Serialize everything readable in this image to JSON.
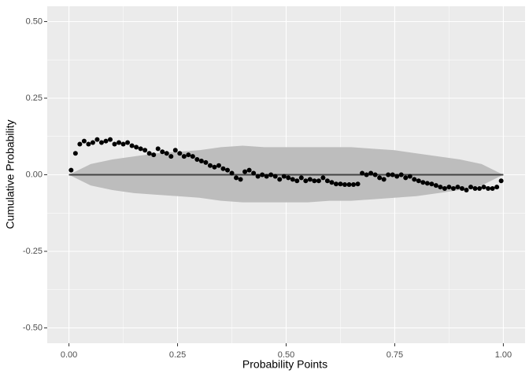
{
  "chart_data": {
    "type": "scatter",
    "xlabel": "Probability Points",
    "ylabel": "Cumulative Probability",
    "x": [
      0.005,
      0.015,
      0.025,
      0.035,
      0.045,
      0.055,
      0.065,
      0.075,
      0.085,
      0.095,
      0.105,
      0.115,
      0.125,
      0.135,
      0.145,
      0.155,
      0.165,
      0.175,
      0.185,
      0.195,
      0.205,
      0.215,
      0.225,
      0.235,
      0.245,
      0.255,
      0.265,
      0.275,
      0.285,
      0.295,
      0.305,
      0.315,
      0.325,
      0.335,
      0.345,
      0.355,
      0.365,
      0.375,
      0.385,
      0.395,
      0.405,
      0.415,
      0.425,
      0.435,
      0.445,
      0.455,
      0.465,
      0.475,
      0.485,
      0.495,
      0.505,
      0.515,
      0.525,
      0.535,
      0.545,
      0.555,
      0.565,
      0.575,
      0.585,
      0.595,
      0.605,
      0.615,
      0.625,
      0.635,
      0.645,
      0.655,
      0.665,
      0.675,
      0.685,
      0.695,
      0.705,
      0.715,
      0.725,
      0.735,
      0.745,
      0.755,
      0.765,
      0.775,
      0.785,
      0.795,
      0.805,
      0.815,
      0.825,
      0.835,
      0.845,
      0.855,
      0.865,
      0.875,
      0.885,
      0.895,
      0.905,
      0.915,
      0.925,
      0.935,
      0.945,
      0.955,
      0.965,
      0.975,
      0.985,
      0.995
    ],
    "values": [
      0.015,
      0.07,
      0.1,
      0.11,
      0.1,
      0.105,
      0.115,
      0.105,
      0.11,
      0.115,
      0.1,
      0.105,
      0.1,
      0.105,
      0.095,
      0.09,
      0.085,
      0.08,
      0.07,
      0.065,
      0.085,
      0.075,
      0.07,
      0.06,
      0.08,
      0.07,
      0.06,
      0.065,
      0.06,
      0.05,
      0.045,
      0.04,
      0.03,
      0.025,
      0.03,
      0.02,
      0.015,
      0.005,
      -0.01,
      -0.015,
      0.01,
      0.015,
      0.005,
      -0.005,
      0,
      -0.005,
      0,
      -0.005,
      -0.015,
      -0.005,
      -0.01,
      -0.015,
      -0.02,
      -0.01,
      -0.02,
      -0.015,
      -0.02,
      -0.02,
      -0.01,
      -0.02,
      -0.025,
      -0.03,
      -0.03,
      -0.032,
      -0.032,
      -0.032,
      -0.03,
      0.005,
      0,
      0.005,
      0,
      -0.01,
      -0.015,
      0,
      0,
      -0.005,
      0,
      -0.01,
      -0.005,
      -0.015,
      -0.02,
      -0.025,
      -0.028,
      -0.03,
      -0.035,
      -0.04,
      -0.045,
      -0.04,
      -0.045,
      -0.04,
      -0.045,
      -0.05,
      -0.04,
      -0.045,
      -0.045,
      -0.04,
      -0.045,
      -0.045,
      -0.04,
      -0.02
    ],
    "color": "#000000",
    "band_x": [
      0,
      0.05,
      0.1,
      0.15,
      0.2,
      0.25,
      0.3,
      0.35,
      0.4,
      0.45,
      0.5,
      0.55,
      0.6,
      0.65,
      0.7,
      0.75,
      0.8,
      0.85,
      0.9,
      0.95,
      1
    ],
    "band_upper": [
      0,
      0.035,
      0.05,
      0.06,
      0.07,
      0.075,
      0.08,
      0.09,
      0.095,
      0.09,
      0.09,
      0.09,
      0.09,
      0.09,
      0.085,
      0.08,
      0.07,
      0.06,
      0.05,
      0.035,
      0
    ],
    "band_lower": [
      0,
      -0.035,
      -0.05,
      -0.06,
      -0.065,
      -0.07,
      -0.075,
      -0.085,
      -0.09,
      -0.09,
      -0.09,
      -0.09,
      -0.085,
      -0.085,
      -0.08,
      -0.075,
      -0.07,
      -0.06,
      -0.05,
      -0.035,
      0
    ],
    "band_color": "#bdbdbd",
    "reference_line": 0,
    "xlim": [
      -0.05,
      1.05
    ],
    "ylim": [
      -0.55,
      0.55
    ],
    "xticks": [
      {
        "value": 0,
        "label": "0.00"
      },
      {
        "value": 0.25,
        "label": "0.25"
      },
      {
        "value": 0.5,
        "label": "0.50"
      },
      {
        "value": 0.75,
        "label": "0.75"
      },
      {
        "value": 1,
        "label": "1.00"
      }
    ],
    "yticks": [
      {
        "value": -0.5,
        "label": "-0.50"
      },
      {
        "value": -0.25,
        "label": "-0.25"
      },
      {
        "value": 0,
        "label": "0.00"
      },
      {
        "value": 0.25,
        "label": "0.25"
      },
      {
        "value": 0.5,
        "label": "0.50"
      }
    ],
    "minor_xticks": [
      0.125,
      0.375,
      0.625,
      0.875
    ],
    "minor_yticks": [
      -0.375,
      -0.125,
      0.125,
      0.375
    ],
    "grid": true
  }
}
